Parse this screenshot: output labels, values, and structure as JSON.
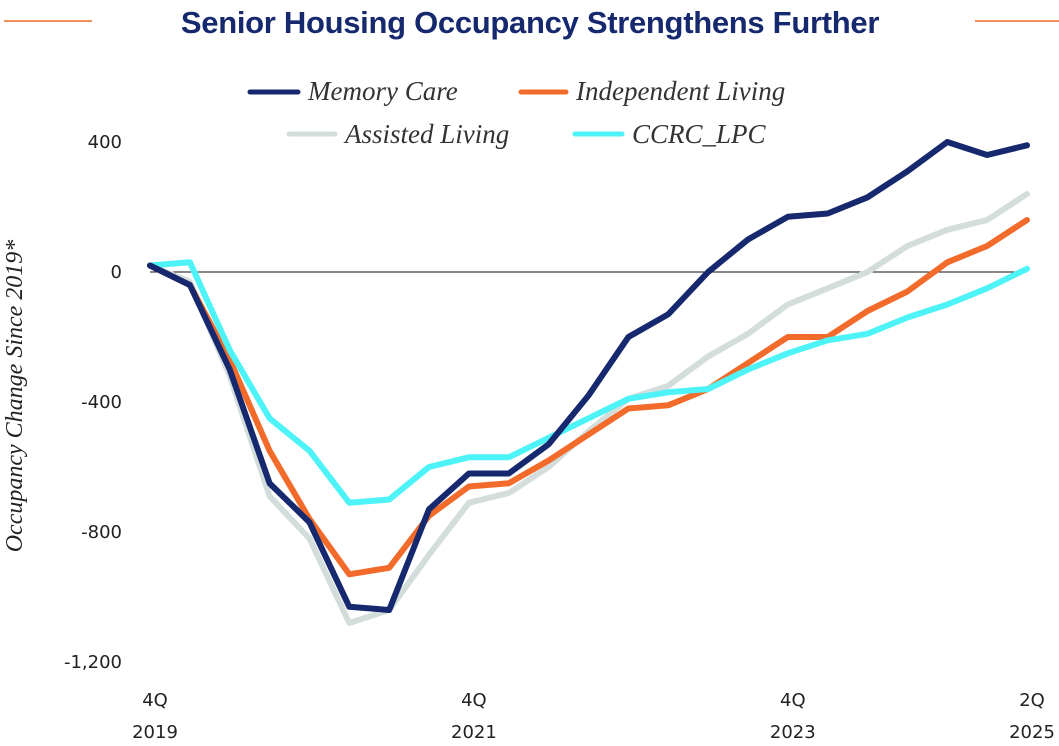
{
  "chart_data": {
    "type": "line",
    "title": "Senior Housing Occupancy Strengthens Further",
    "ylabel": "Occupancy Change Since 2019*",
    "xlabel": "",
    "ylim": [
      -1200,
      400
    ],
    "y_ticks": [
      {
        "value": 400,
        "label": "400"
      },
      {
        "value": 0,
        "label": "0"
      },
      {
        "value": -400,
        "label": "-400"
      },
      {
        "value": -800,
        "label": "-800"
      },
      {
        "value": -1200,
        "label": "-1,200"
      }
    ],
    "x": [
      "4Q 2019",
      "1Q 2020",
      "2Q 2020",
      "3Q 2020",
      "4Q 2020",
      "1Q 2021",
      "2Q 2021",
      "3Q 2021",
      "4Q 2021",
      "1Q 2022",
      "2Q 2022",
      "3Q 2022",
      "4Q 2022",
      "1Q 2023",
      "2Q 2023",
      "3Q 2023",
      "4Q 2023",
      "1Q 2024",
      "2Q 2024",
      "3Q 2024",
      "4Q 2024",
      "1Q 2025",
      "2Q 2025"
    ],
    "x_ticks": [
      {
        "index": 0,
        "line1": "4Q",
        "line2": "2019"
      },
      {
        "index": 8,
        "line1": "4Q",
        "line2": "2021"
      },
      {
        "index": 16,
        "line1": "4Q",
        "line2": "2023"
      },
      {
        "index": 22,
        "line1": "2Q",
        "line2": "2025"
      }
    ],
    "zero_line": true,
    "legend_placement": "top-center",
    "series": [
      {
        "name": "Assisted Living",
        "color": "#d3dedc",
        "values": [
          20,
          -30,
          -320,
          -690,
          -820,
          -1080,
          -1040,
          -870,
          -710,
          -680,
          -600,
          -490,
          -390,
          -350,
          -260,
          -190,
          -100,
          -50,
          0,
          80,
          130,
          160,
          240
        ]
      },
      {
        "name": "Independent Living",
        "color": "#f26b2a",
        "values": [
          20,
          -40,
          -270,
          -550,
          -760,
          -930,
          -910,
          -750,
          -660,
          -650,
          -580,
          -500,
          -420,
          -410,
          -360,
          -280,
          -200,
          -200,
          -120,
          -60,
          30,
          80,
          160
        ]
      },
      {
        "name": "CCRC_LPC",
        "color": "#4ef3f8",
        "values": [
          20,
          30,
          -240,
          -450,
          -550,
          -710,
          -700,
          -600,
          -570,
          -570,
          -510,
          -450,
          -390,
          -370,
          -360,
          -300,
          -250,
          -210,
          -190,
          -140,
          -100,
          -50,
          10
        ]
      },
      {
        "name": "Memory Care",
        "color": "#16286e",
        "values": [
          20,
          -40,
          -300,
          -650,
          -770,
          -1030,
          -1040,
          -730,
          -620,
          -620,
          -530,
          -380,
          -200,
          -130,
          0,
          100,
          170,
          180,
          230,
          310,
          400,
          360,
          390
        ]
      }
    ],
    "legend": [
      {
        "name": "Memory Care",
        "color": "#16286e"
      },
      {
        "name": "Independent Living",
        "color": "#f26b2a"
      },
      {
        "name": "Assisted Living",
        "color": "#d3dedc"
      },
      {
        "name": "CCRC_LPC",
        "color": "#4ef3f8"
      }
    ],
    "title_accent_color": "#f26b2a"
  }
}
